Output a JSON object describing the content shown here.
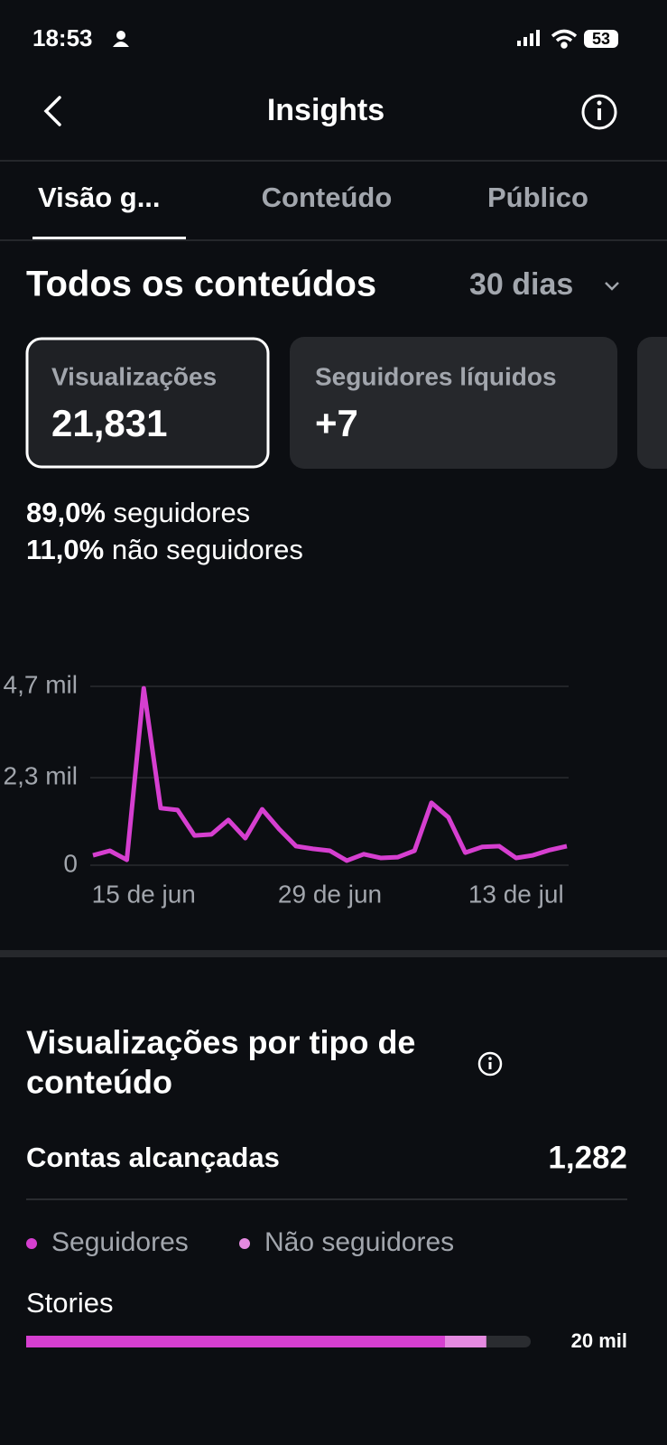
{
  "status_bar": {
    "time": "18:53",
    "battery": "53"
  },
  "header": {
    "title": "Insights"
  },
  "tabs": [
    "Visão g...",
    "Conteúdo",
    "Público"
  ],
  "section": {
    "title": "Todos os conteúdos",
    "period": "30 dias"
  },
  "cards": [
    {
      "label": "Visualizações",
      "value": "21,831"
    },
    {
      "label": "Seguidores líquidos",
      "value": "+7"
    }
  ],
  "breakdown": [
    {
      "pct": "89,0%",
      "label": "seguidores"
    },
    {
      "pct": "11,0%",
      "label": "não seguidores"
    }
  ],
  "content_type": {
    "title_line1": "Visualizações por tipo de",
    "title_line2": "conteúdo",
    "reach_label": "Contas alcançadas",
    "reach_value": "1,282"
  },
  "chart_data": [
    {
      "type": "line",
      "color": "#d63fd0",
      "categories": [
        null,
        null,
        null,
        "15 de jun",
        null,
        null,
        null,
        null,
        null,
        null,
        null,
        null,
        null,
        null,
        "29 de jun",
        null,
        null,
        null,
        null,
        null,
        null,
        null,
        null,
        null,
        null,
        "13 de jul",
        null,
        null,
        null
      ],
      "values": [
        260,
        380,
        140,
        4650,
        1500,
        1450,
        780,
        810,
        1190,
        710,
        1470,
        950,
        500,
        430,
        380,
        120,
        290,
        190,
        210,
        380,
        1640,
        1260,
        330,
        480,
        500,
        190,
        260,
        400,
        500
      ],
      "ylim": [
        0,
        4700
      ],
      "yticks": [
        0,
        {
          "value": 2300,
          "label": "2,3 mil"
        },
        {
          "value": 4700,
          "label": "4,7 mil"
        }
      ],
      "grid": true
    },
    {
      "type": "bar",
      "orientation": "horizontal",
      "stacked": true,
      "categories": [
        "Stories"
      ],
      "series": [
        {
          "name": "Seguidores",
          "color": "#d63fd0",
          "values": [
            16600
          ]
        },
        {
          "name": "Não seguidores",
          "color": "#e58ae0",
          "values": [
            1640
          ]
        }
      ],
      "xlim": [
        0,
        20000
      ],
      "xticks": [
        {
          "value": 20000,
          "label": "20 mil"
        }
      ]
    }
  ]
}
